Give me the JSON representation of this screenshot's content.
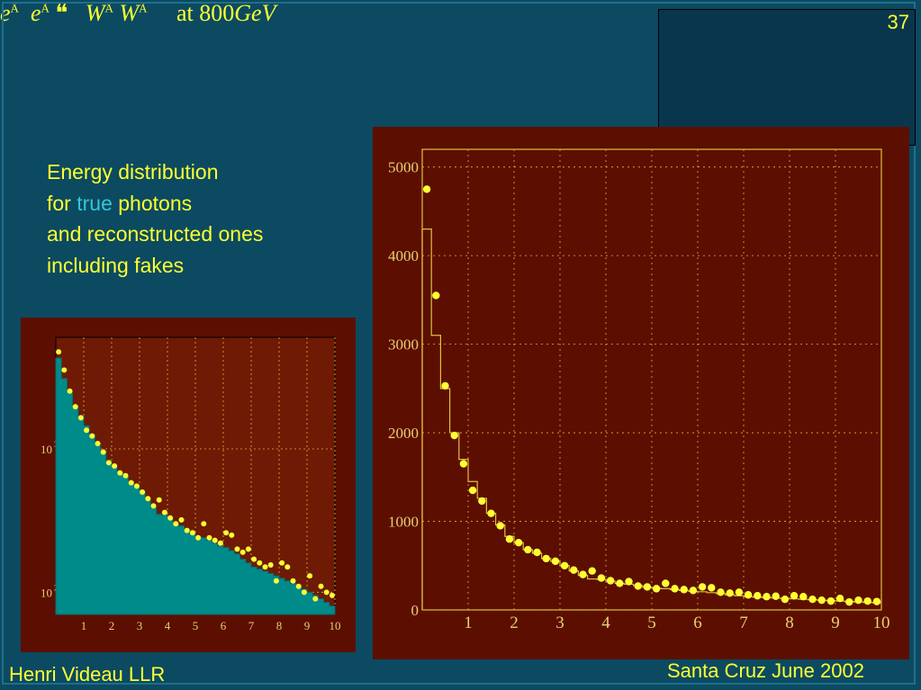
{
  "page_number": "37",
  "title": {
    "p1": "e",
    "s1": "Â",
    "p2": "e",
    "s2": "Ã",
    "arrow": "❝",
    "p3": "W",
    "s3": "Â",
    "p4": "W",
    "s4": "Ã",
    "at": "at 800",
    "unit": "GeV"
  },
  "description": {
    "line1": "Energy distribution",
    "line2_pre": "for ",
    "line2_hl": "true",
    "line2_post": " photons",
    "line3": "and reconstructed ones",
    "line4": "including fakes"
  },
  "footer": {
    "left": "Henri Videau  LLR",
    "right": "Santa Cruz June 2002"
  },
  "colors": {
    "background": "#0b4a60",
    "text": "#ffff33",
    "highlight": "#33c7d9",
    "chart_panel": "#5c0f00",
    "histogram_fill": "#008b8b",
    "points": "#ffff33"
  },
  "chart_data": [
    {
      "type": "area",
      "scale": "log",
      "x_ticks": [
        "1",
        "2",
        "3",
        "4",
        "5",
        "6",
        "7",
        "8",
        "9",
        "10"
      ],
      "y_ticks": [
        {
          "label": "10",
          "exp": "3",
          "value": 1000
        },
        {
          "label": "10",
          "exp": "2",
          "value": 100
        }
      ],
      "xlim": [
        0,
        10
      ],
      "ylim": [
        70,
        6000
      ],
      "grid": true,
      "series": [
        {
          "role": "histogram",
          "x": [
            0.1,
            0.3,
            0.5,
            0.7,
            0.9,
            1.1,
            1.3,
            1.5,
            1.7,
            1.9,
            2.1,
            2.3,
            2.5,
            2.7,
            2.9,
            3.1,
            3.3,
            3.5,
            3.7,
            3.9,
            4.1,
            4.3,
            4.5,
            4.7,
            4.9,
            5.1,
            5.3,
            5.5,
            5.7,
            5.9,
            6.1,
            6.3,
            6.5,
            6.7,
            6.9,
            7.1,
            7.3,
            7.5,
            7.7,
            7.9,
            8.1,
            8.3,
            8.5,
            8.7,
            8.9,
            9.1,
            9.3,
            9.5,
            9.7,
            9.9
          ],
          "values": [
            4300,
            3100,
            2500,
            2000,
            1700,
            1450,
            1260,
            1090,
            960,
            830,
            760,
            680,
            640,
            580,
            550,
            500,
            440,
            390,
            350,
            345,
            325,
            300,
            290,
            275,
            255,
            245,
            240,
            230,
            220,
            210,
            205,
            195,
            185,
            170,
            160,
            150,
            145,
            140,
            135,
            130,
            125,
            120,
            115,
            110,
            105,
            100,
            95,
            90,
            85,
            80
          ]
        },
        {
          "role": "points",
          "x": [
            0.1,
            0.3,
            0.5,
            0.7,
            0.9,
            1.1,
            1.3,
            1.5,
            1.7,
            1.9,
            2.1,
            2.3,
            2.5,
            2.7,
            2.9,
            3.1,
            3.3,
            3.5,
            3.7,
            3.9,
            4.1,
            4.3,
            4.5,
            4.7,
            4.9,
            5.1,
            5.3,
            5.5,
            5.7,
            5.9,
            6.1,
            6.3,
            6.5,
            6.7,
            6.9,
            7.1,
            7.3,
            7.5,
            7.7,
            7.9,
            8.1,
            8.3,
            8.5,
            8.7,
            8.9,
            9.1,
            9.3,
            9.5,
            9.7,
            9.9
          ],
          "values": [
            4750,
            3550,
            2530,
            1970,
            1650,
            1350,
            1230,
            1090,
            950,
            800,
            760,
            680,
            650,
            580,
            550,
            500,
            450,
            400,
            440,
            360,
            330,
            300,
            320,
            270,
            260,
            240,
            300,
            240,
            230,
            220,
            260,
            250,
            200,
            190,
            200,
            170,
            160,
            150,
            155,
            120,
            160,
            150,
            120,
            110,
            100,
            130,
            90,
            110,
            100,
            95
          ]
        }
      ]
    },
    {
      "type": "line",
      "x_ticks": [
        "1",
        "2",
        "3",
        "4",
        "5",
        "6",
        "7",
        "8",
        "9",
        "10"
      ],
      "y_ticks": [
        "0",
        "1000",
        "2000",
        "3000",
        "4000",
        "5000"
      ],
      "xlim": [
        0,
        10
      ],
      "ylim": [
        0,
        5200
      ],
      "grid": true,
      "series": [
        {
          "role": "histogram",
          "x": [
            0.1,
            0.3,
            0.5,
            0.7,
            0.9,
            1.1,
            1.3,
            1.5,
            1.7,
            1.9,
            2.1,
            2.3,
            2.5,
            2.7,
            2.9,
            3.1,
            3.3,
            3.5,
            3.7,
            3.9,
            4.1,
            4.3,
            4.5,
            4.7,
            4.9,
            5.1,
            5.3,
            5.5,
            5.7,
            5.9,
            6.1,
            6.3,
            6.5,
            6.7,
            6.9,
            7.1,
            7.3,
            7.5,
            7.7,
            7.9,
            8.1,
            8.3,
            8.5,
            8.7,
            8.9,
            9.1,
            9.3,
            9.5,
            9.7,
            9.9
          ],
          "values": [
            4300,
            3100,
            2500,
            2000,
            1700,
            1450,
            1260,
            1090,
            960,
            830,
            760,
            680,
            640,
            580,
            550,
            500,
            440,
            390,
            350,
            345,
            325,
            300,
            290,
            275,
            255,
            245,
            240,
            230,
            220,
            210,
            205,
            195,
            185,
            170,
            160,
            150,
            145,
            140,
            135,
            130,
            125,
            120,
            115,
            110,
            105,
            100,
            95,
            90,
            85,
            80
          ]
        },
        {
          "role": "points",
          "x": [
            0.1,
            0.3,
            0.5,
            0.7,
            0.9,
            1.1,
            1.3,
            1.5,
            1.7,
            1.9,
            2.1,
            2.3,
            2.5,
            2.7,
            2.9,
            3.1,
            3.3,
            3.5,
            3.7,
            3.9,
            4.1,
            4.3,
            4.5,
            4.7,
            4.9,
            5.1,
            5.3,
            5.5,
            5.7,
            5.9,
            6.1,
            6.3,
            6.5,
            6.7,
            6.9,
            7.1,
            7.3,
            7.5,
            7.7,
            7.9,
            8.1,
            8.3,
            8.5,
            8.7,
            8.9,
            9.1,
            9.3,
            9.5,
            9.7,
            9.9
          ],
          "values": [
            4750,
            3550,
            2530,
            1970,
            1650,
            1350,
            1230,
            1090,
            950,
            800,
            760,
            680,
            650,
            580,
            550,
            500,
            450,
            400,
            440,
            360,
            330,
            300,
            320,
            270,
            260,
            240,
            300,
            240,
            230,
            220,
            260,
            250,
            200,
            190,
            200,
            170,
            160,
            150,
            155,
            120,
            160,
            150,
            120,
            110,
            100,
            130,
            90,
            110,
            100,
            95
          ]
        }
      ]
    }
  ]
}
